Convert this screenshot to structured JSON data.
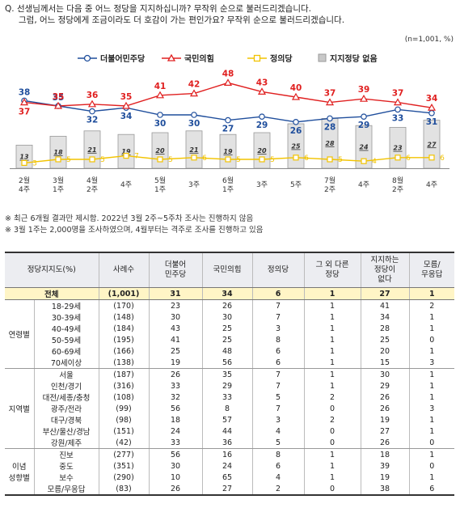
{
  "question": {
    "line1": "Q. 선생님께서는 다음 중 어느 정당을 지지하십니까? 무작위 순으로 불러드리겠습니다.",
    "line2": "그럼, 어느 정당에게 조금이라도 더 호감이 가는 편인가요? 무작위 순으로 불러드리겠습니다."
  },
  "unit": "(n=1,001, %)",
  "colors": {
    "dem": "#1f4e9c",
    "ppp": "#e02020",
    "justice": "#f2c300",
    "none_fill": "#c8c8c8",
    "none_stroke": "#9a9a9a"
  },
  "chart_data": {
    "type": "line",
    "x": [
      "2월 4주",
      "3월 1주",
      "4월 2주",
      "4주",
      "5월 1주",
      "3주",
      "6월 1주",
      "3주",
      "5주",
      "7월 2주",
      "4주",
      "8월 2주",
      "4주"
    ],
    "x_line1": [
      "2월",
      "3월",
      "4월",
      "",
      "5월",
      "",
      "6월",
      "",
      "",
      "7월",
      "",
      "8월",
      ""
    ],
    "x_line2": [
      "4주",
      "1주",
      "2주",
      "4주",
      "1주",
      "3주",
      "1주",
      "3주",
      "5주",
      "2주",
      "4주",
      "2주",
      "4주"
    ],
    "series": [
      {
        "name": "더불어민주당",
        "type": "line",
        "values": [
          38,
          35,
          32,
          34,
          30,
          30,
          27,
          29,
          26,
          28,
          29,
          33,
          31
        ]
      },
      {
        "name": "국민의힘",
        "type": "line",
        "values": [
          37,
          35,
          36,
          35,
          41,
          42,
          48,
          43,
          40,
          37,
          39,
          37,
          34
        ]
      },
      {
        "name": "정의당",
        "type": "line",
        "values": [
          3,
          5,
          5,
          7,
          5,
          6,
          5,
          5,
          6,
          5,
          4,
          6,
          6
        ]
      },
      {
        "name": "지지정당 없음",
        "type": "bar",
        "values": [
          13,
          18,
          21,
          19,
          20,
          21,
          19,
          20,
          25,
          28,
          24,
          23,
          27
        ]
      }
    ],
    "grid": false,
    "legend": "top"
  },
  "notes": [
    "※ 최근 6개월 결과만 제시함. 2022년 3월 2주~5주차 조사는 진행하지 않음",
    "※ 3월 1주는 2,000명을 조사하였으며, 4월부터는 격주로 조사를 진행하고 있음"
  ],
  "table": {
    "headers": [
      "정당지지도(%)",
      "사례수",
      "더불어\n민주당",
      "국민의힘",
      "정의당",
      "그 외 다른\n정당",
      "지지하는\n정당이\n없다",
      "모름/\n무응답"
    ],
    "total": {
      "label": "전체",
      "n": "(1,001)",
      "v": [
        "31",
        "34",
        "6",
        "1",
        "27",
        "1"
      ]
    },
    "groups": [
      {
        "name": "연령별",
        "rows": [
          {
            "label": "18-29세",
            "n": "(170)",
            "v": [
              "23",
              "26",
              "7",
              "1",
              "41",
              "2"
            ]
          },
          {
            "label": "30-39세",
            "n": "(148)",
            "v": [
              "30",
              "30",
              "7",
              "1",
              "34",
              "1"
            ]
          },
          {
            "label": "40-49세",
            "n": "(184)",
            "v": [
              "43",
              "25",
              "3",
              "1",
              "28",
              "1"
            ]
          },
          {
            "label": "50-59세",
            "n": "(195)",
            "v": [
              "41",
              "25",
              "8",
              "1",
              "25",
              "0"
            ]
          },
          {
            "label": "60-69세",
            "n": "(166)",
            "v": [
              "25",
              "48",
              "6",
              "1",
              "20",
              "1"
            ]
          },
          {
            "label": "70세이상",
            "n": "(138)",
            "v": [
              "19",
              "56",
              "6",
              "1",
              "15",
              "3"
            ]
          }
        ]
      },
      {
        "name": "지역별",
        "rows": [
          {
            "label": "서울",
            "n": "(187)",
            "v": [
              "26",
              "35",
              "7",
              "1",
              "30",
              "1"
            ]
          },
          {
            "label": "인천/경기",
            "n": "(316)",
            "v": [
              "33",
              "29",
              "7",
              "1",
              "29",
              "1"
            ]
          },
          {
            "label": "대전/세종/충청",
            "n": "(108)",
            "v": [
              "32",
              "33",
              "5",
              "2",
              "26",
              "1"
            ]
          },
          {
            "label": "광주/전라",
            "n": "(99)",
            "v": [
              "56",
              "8",
              "7",
              "0",
              "26",
              "3"
            ]
          },
          {
            "label": "대구/경북",
            "n": "(98)",
            "v": [
              "18",
              "57",
              "3",
              "2",
              "19",
              "1"
            ]
          },
          {
            "label": "부산/울산/경남",
            "n": "(151)",
            "v": [
              "24",
              "44",
              "4",
              "0",
              "27",
              "1"
            ]
          },
          {
            "label": "강원/제주",
            "n": "(42)",
            "v": [
              "33",
              "36",
              "5",
              "0",
              "26",
              "0"
            ]
          }
        ]
      },
      {
        "name": "이념\n성향별",
        "rows": [
          {
            "label": "진보",
            "n": "(277)",
            "v": [
              "56",
              "16",
              "8",
              "1",
              "18",
              "1"
            ]
          },
          {
            "label": "중도",
            "n": "(351)",
            "v": [
              "30",
              "24",
              "6",
              "1",
              "39",
              "0"
            ]
          },
          {
            "label": "보수",
            "n": "(290)",
            "v": [
              "10",
              "65",
              "4",
              "1",
              "19",
              "1"
            ]
          },
          {
            "label": "모름/무응답",
            "n": "(83)",
            "v": [
              "26",
              "27",
              "2",
              "0",
              "38",
              "6"
            ]
          }
        ]
      }
    ]
  }
}
